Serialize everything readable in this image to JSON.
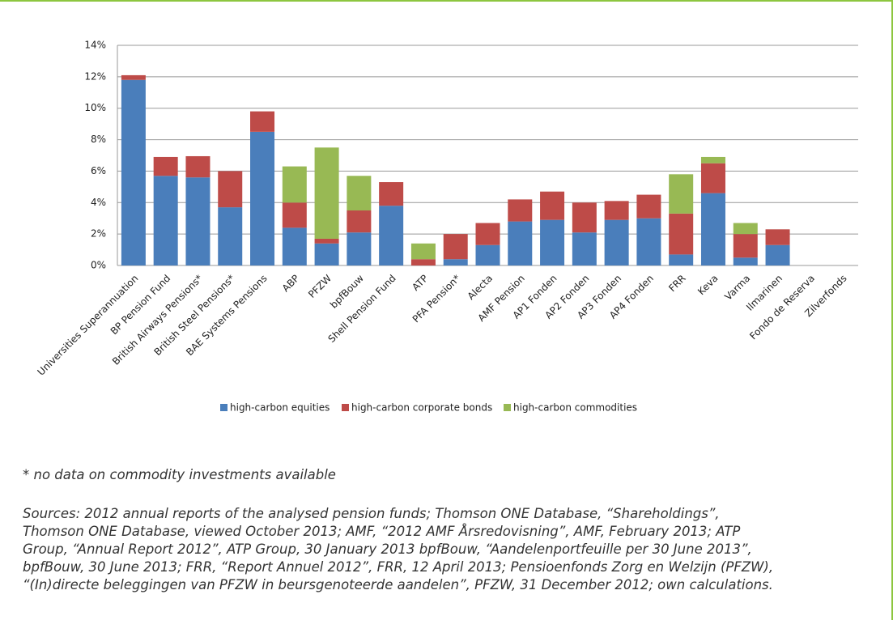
{
  "chart_data": {
    "type": "stacked-bar",
    "categories": [
      "Universities Superannuation",
      "BP Pension Fund",
      "British Airways Pensions*",
      "British Steel Pensions*",
      "BAE Systems Pensions",
      "ABP",
      "PFZW",
      "bpfBouw",
      "Shell Pension Fund",
      "ATP",
      "PFA Pension*",
      "Alecta",
      "AMF Pension",
      "AP1 Fonden",
      "AP2 Fonden",
      "AP3 Fonden",
      "AP4 Fonden",
      "FRR",
      "Keva",
      "Varma",
      "Ilmarinen",
      "Fondo de Reserva",
      "Zilverfonds"
    ],
    "series": [
      {
        "name": "high-carbon equities",
        "color": "#4a7ebb",
        "values": [
          11.8,
          5.7,
          5.6,
          3.7,
          8.5,
          2.4,
          1.4,
          2.1,
          3.8,
          0,
          0.4,
          1.3,
          2.8,
          2.9,
          2.1,
          2.9,
          3.0,
          0.7,
          4.6,
          0.5,
          1.3,
          0,
          0
        ]
      },
      {
        "name": "high-carbon corporate bonds",
        "color": "#be4b48",
        "values": [
          0.3,
          1.2,
          1.35,
          2.3,
          1.3,
          1.6,
          0.3,
          1.4,
          1.5,
          0.4,
          1.6,
          1.4,
          1.4,
          1.8,
          1.9,
          1.2,
          1.5,
          2.6,
          1.9,
          1.5,
          1.0,
          0,
          0
        ]
      },
      {
        "name": "high-carbon commodities",
        "color": "#98b954",
        "values": [
          0,
          0,
          0,
          0,
          0,
          2.3,
          5.8,
          2.2,
          0,
          1.0,
          0,
          0,
          0,
          0,
          0,
          0,
          0,
          2.5,
          0.4,
          0.7,
          0,
          0,
          0
        ]
      }
    ],
    "ylim": [
      0,
      14
    ],
    "yticks": [
      {
        "value": 0,
        "label": "0%"
      },
      {
        "value": 2,
        "label": "2%"
      },
      {
        "value": 4,
        "label": "4%"
      },
      {
        "value": 6,
        "label": "6%"
      },
      {
        "value": 8,
        "label": "8%"
      },
      {
        "value": 10,
        "label": "10%"
      },
      {
        "value": 12,
        "label": "12%"
      },
      {
        "value": 14,
        "label": "14%"
      }
    ],
    "grid": true,
    "legend": "bottom",
    "footnote": "* no data on commodity investments available",
    "sources": [
      "Sources: 2012 annual reports of the analysed pension funds; Thomson ONE Database, “Shareholdings”,",
      "Thomson ONE Database, viewed October 2013; AMF, “2012 AMF Årsredovisning”, AMF, February 2013; ATP",
      "Group, “Annual Report 2012”, ATP Group, 30 January 2013 bpfBouw, “Aandelenportfeuille per 30 June 2013”,",
      "bpfBouw, 30 June 2013; FRR, “Report Annuel 2012”, FRR, 12 April 2013; Pensioenfonds Zorg en Welzijn (PFZW),",
      "“(In)directe beleggingen van PFZW in beursgenoteerde aandelen”, PFZW, 31 December 2012; own calculations."
    ]
  }
}
